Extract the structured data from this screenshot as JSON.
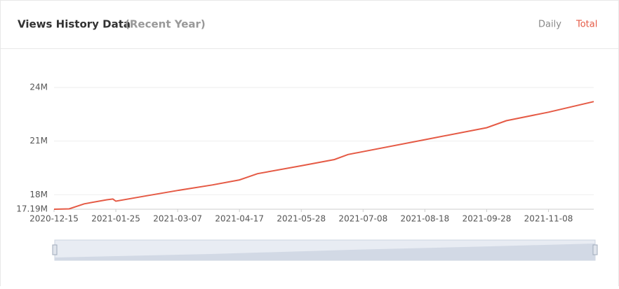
{
  "tabs": [
    "Daily",
    "Total"
  ],
  "chart_data": {
    "type": "line",
    "title": "Views History Data",
    "subtitle": "(Recent Year)",
    "color": "#e55a45",
    "grid": true,
    "x": [
      "2020-12-15",
      "2020-12-25",
      "2021-01-04",
      "2021-01-19",
      "2021-01-23",
      "2021-01-25",
      "2021-02-13",
      "2021-03-07",
      "2021-03-30",
      "2021-04-17",
      "2021-04-29",
      "2021-05-28",
      "2021-06-19",
      "2021-06-28",
      "2021-07-08",
      "2021-08-18",
      "2021-09-28",
      "2021-10-11",
      "2021-11-08",
      "2021-12-08"
    ],
    "values": [
      17190000,
      17210000,
      17490000,
      17720000,
      17760000,
      17640000,
      17920000,
      18240000,
      18550000,
      18830000,
      19180000,
      19620000,
      19970000,
      20250000,
      20410000,
      21080000,
      21750000,
      22140000,
      22620000,
      23210000
    ],
    "xlim": [
      "2020-12-15",
      "2021-12-08"
    ],
    "xticks": [
      "2020-12-15",
      "2021-01-25",
      "2021-03-07",
      "2021-04-17",
      "2021-05-28",
      "2021-07-08",
      "2021-08-18",
      "2021-09-28",
      "2021-11-08"
    ],
    "ylim": [
      17190000,
      24000000
    ],
    "yticks": [
      {
        "value": 17190000,
        "label": "17.19M"
      },
      {
        "value": 18000000,
        "label": "18M"
      },
      {
        "value": 21000000,
        "label": "21M"
      },
      {
        "value": 24000000,
        "label": "24M"
      }
    ]
  }
}
